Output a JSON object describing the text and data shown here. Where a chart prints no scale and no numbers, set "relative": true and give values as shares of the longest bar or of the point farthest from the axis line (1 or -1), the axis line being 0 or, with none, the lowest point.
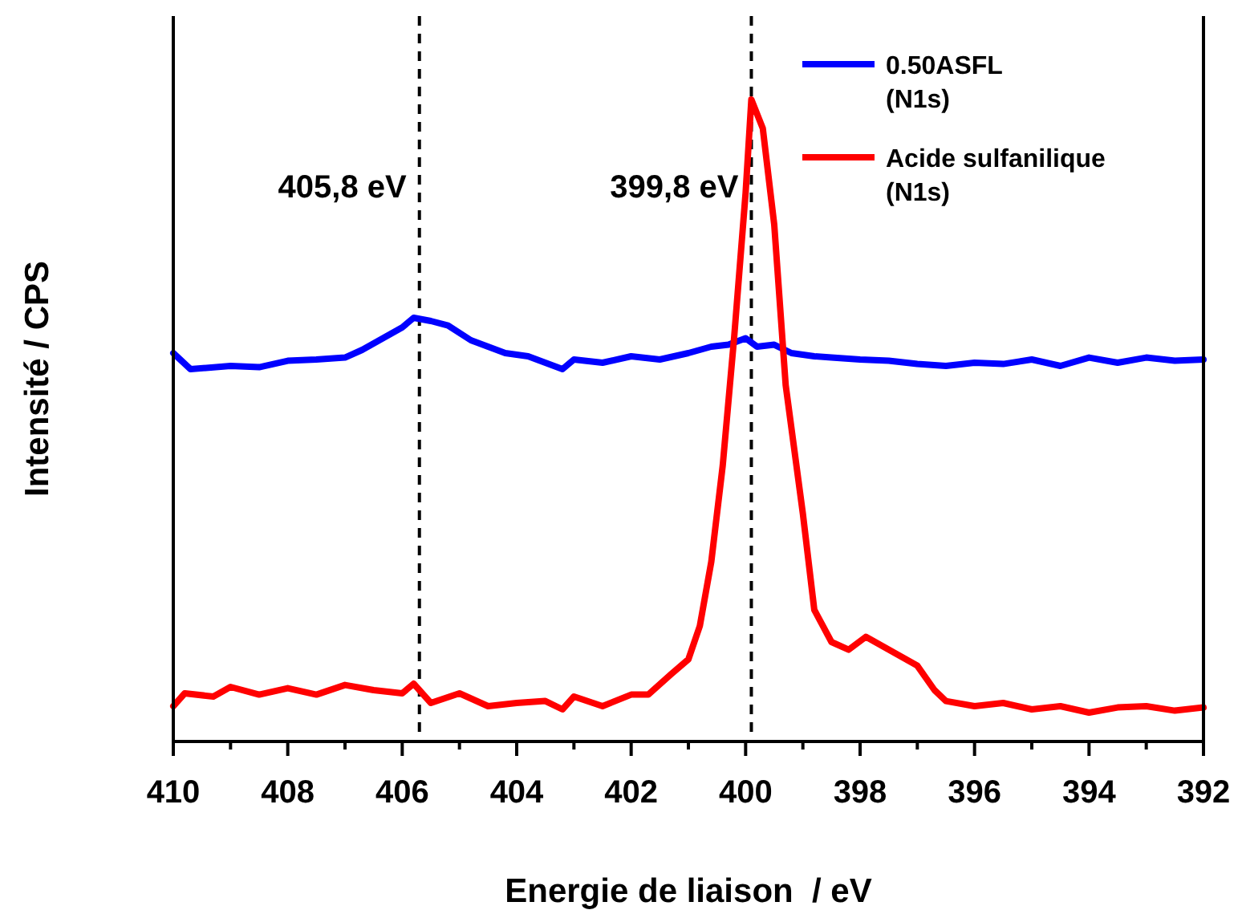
{
  "chart_data": {
    "type": "line",
    "relative": true,
    "xlabel": "Energie de liaison  / eV",
    "ylabel": "Intensité / CPS",
    "xlim": [
      410,
      392
    ],
    "xticks": [
      410,
      {
        "value": 409,
        "label": null
      },
      408,
      {
        "value": 407,
        "label": null
      },
      406,
      {
        "value": 405,
        "label": null
      },
      404,
      {
        "value": 403,
        "label": null
      },
      402,
      {
        "value": 401,
        "label": null
      },
      400,
      {
        "value": 399,
        "label": null
      },
      398,
      {
        "value": 397,
        "label": null
      },
      396,
      {
        "value": 395,
        "label": null
      },
      394,
      {
        "value": 393,
        "label": null
      },
      392
    ],
    "legend": "top right",
    "line_style": "solid",
    "marker": "none",
    "ref_lines": [
      {
        "axis": "x",
        "value": 405.7,
        "label": "405,8 eV",
        "color": "#000000",
        "line_style": "dashed"
      },
      {
        "axis": "x",
        "value": 399.9,
        "label": "399,8 eV",
        "color": "#000000",
        "line_style": "dashed"
      }
    ],
    "series": [
      {
        "name": "0.50ASFL (N1s)",
        "color": "#0000ff",
        "x": [
          410,
          409.7,
          409,
          408.5,
          408,
          407.5,
          407,
          406.7,
          406.3,
          406,
          405.8,
          405.5,
          405.2,
          404.8,
          404.5,
          404.2,
          403.8,
          403.5,
          403.2,
          403,
          402.5,
          402,
          401.5,
          401,
          400.6,
          400.3,
          400,
          399.8,
          399.5,
          399.2,
          398.8,
          398.5,
          398,
          397.5,
          397,
          396.5,
          396,
          395.5,
          395,
          394.5,
          394,
          393.5,
          393,
          392.5,
          392
        ],
        "values": [
          0.605,
          0.58,
          0.585,
          0.583,
          0.593,
          0.595,
          0.598,
          0.61,
          0.63,
          0.645,
          0.66,
          0.655,
          0.648,
          0.625,
          0.615,
          0.605,
          0.6,
          0.59,
          0.58,
          0.595,
          0.59,
          0.6,
          0.595,
          0.605,
          0.615,
          0.618,
          0.628,
          0.615,
          0.618,
          0.605,
          0.6,
          0.598,
          0.595,
          0.593,
          0.588,
          0.585,
          0.59,
          0.588,
          0.595,
          0.585,
          0.598,
          0.59,
          0.598,
          0.593,
          0.595
        ]
      },
      {
        "name": "Acide sulfanilique (N1s)",
        "color": "#ff0000",
        "x": [
          410,
          409.8,
          409.3,
          409,
          408.5,
          408,
          407.5,
          407,
          406.5,
          406,
          405.8,
          405.5,
          405,
          404.5,
          404,
          403.5,
          403.2,
          403,
          402.5,
          402,
          401.7,
          401.3,
          401,
          400.8,
          400.6,
          400.4,
          400.2,
          400,
          399.9,
          399.7,
          399.5,
          399.3,
          399,
          398.8,
          398.5,
          398.2,
          397.9,
          397.5,
          397,
          396.7,
          396.5,
          396,
          395.5,
          395,
          394.5,
          394,
          393.5,
          393,
          392.5,
          392
        ],
        "values": [
          0.055,
          0.075,
          0.07,
          0.085,
          0.073,
          0.083,
          0.073,
          0.088,
          0.08,
          0.075,
          0.09,
          0.06,
          0.075,
          0.055,
          0.06,
          0.063,
          0.05,
          0.07,
          0.055,
          0.073,
          0.073,
          0.105,
          0.128,
          0.18,
          0.28,
          0.43,
          0.63,
          0.855,
          1,
          0.955,
          0.805,
          0.555,
          0.355,
          0.205,
          0.155,
          0.143,
          0.163,
          0.143,
          0.118,
          0.08,
          0.063,
          0.055,
          0.06,
          0.05,
          0.055,
          0.045,
          0.053,
          0.055,
          0.048,
          0.053
        ]
      }
    ]
  }
}
